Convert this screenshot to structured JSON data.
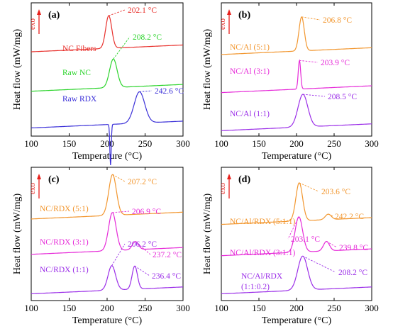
{
  "chart_data": [
    {
      "type": "line",
      "panel": "(a)",
      "exo_label": "exo",
      "xlabel": "Temperature (°C)",
      "ylabel": "Heat flow (mW/mg)",
      "xlim": [
        100,
        300
      ],
      "x_ticks": [
        "100",
        "150",
        "200",
        "250",
        "300"
      ],
      "series": [
        {
          "name": "NC Fibers",
          "color": "#e8302c",
          "offset": 6.2,
          "peak_label": "202.1 °C",
          "peaks": [
            [
              202.1,
              2.4,
              4
            ]
          ]
        },
        {
          "name": "Raw NC",
          "color": "#2cd42c",
          "offset": 3.3,
          "peak_label": "208.2 °C",
          "peaks": [
            [
              208.2,
              2.1,
              5
            ]
          ]
        },
        {
          "name": "Raw RDX",
          "color": "#3b30d8",
          "offset": 0.6,
          "peak_label": "242.6 °C",
          "peaks": [
            [
              204.5,
              -3.0,
              0.9
            ],
            [
              242.6,
              2.3,
              7
            ]
          ]
        }
      ]
    },
    {
      "type": "line",
      "panel": "(b)",
      "exo_label": "exo",
      "xlabel": "Temperature (°C)",
      "ylabel": "Heat flow (mW/mg)",
      "xlim": [
        100,
        300
      ],
      "x_ticks": [
        "100",
        "150",
        "200",
        "250",
        "300"
      ],
      "series": [
        {
          "name": "NC/Al (5:1)",
          "color": "#f2962e",
          "offset": 6.0,
          "peak_label": "206.8 °C",
          "peaks": [
            [
              206.8,
              2.5,
              3.5
            ]
          ]
        },
        {
          "name": "NC/Al (3:1)",
          "color": "#e62ad8",
          "offset": 3.2,
          "peak_label": "203.9 °C",
          "peaks": [
            [
              203.9,
              2.1,
              1.6
            ]
          ]
        },
        {
          "name": "NC/Al (1:1)",
          "color": "#9b2ee8",
          "offset": 0.4,
          "peak_label": "208.5 °C",
          "peaks": [
            [
              208.5,
              2.4,
              6.5
            ]
          ]
        }
      ]
    },
    {
      "type": "line",
      "panel": "(c)",
      "exo_label": "exo",
      "xlabel": "Temperature (°C)",
      "ylabel": "Heat flow (mW/mg)",
      "xlim": [
        100,
        300
      ],
      "x_ticks": [
        "100",
        "150",
        "200",
        "250",
        "300"
      ],
      "series": [
        {
          "name": "NC/RDX (5:1)",
          "color": "#f2962e",
          "offset": 6.0,
          "peak_label": "207.2 °C",
          "peaks": [
            [
              207.2,
              3.0,
              5
            ]
          ]
        },
        {
          "name": "NC/RDX (3:1)",
          "color": "#e62ad8",
          "offset": 3.4,
          "peak_label": "206.9 °C",
          "second_peak_label": "237.2 °C",
          "peaks": [
            [
              206.9,
              2.8,
              5
            ],
            [
              237.2,
              0.6,
              4
            ]
          ]
        },
        {
          "name": "NC/RDX (1:1)",
          "color": "#9b2ee8",
          "offset": 0.5,
          "peak_label": "206.2 °C",
          "second_peak_label": "236.4 °C",
          "peaks": [
            [
              206.2,
              1.8,
              5
            ],
            [
              236.4,
              1.7,
              3.5
            ]
          ]
        }
      ]
    },
    {
      "type": "line",
      "panel": "(d)",
      "exo_label": "exo",
      "xlabel": "Temperature (°C)",
      "ylabel": "Heat flow (mW/mg)",
      "xlim": [
        100,
        300
      ],
      "x_ticks": [
        "100",
        "150",
        "200",
        "250",
        "300"
      ],
      "series": [
        {
          "name": "NC/Al/RDX (5:1:1)",
          "color": "#f2962e",
          "offset": 5.6,
          "peak_label": "203.6 °C",
          "second_peak_label": "242.2 °C",
          "peaks": [
            [
              203.6,
              2.8,
              4.5
            ],
            [
              242.2,
              0.4,
              4
            ]
          ]
        },
        {
          "name": "NC/Al/RDX (3:1:1)",
          "color": "#e62ad8",
          "offset": 3.3,
          "peak_label": "203.1 °C",
          "second_peak_label": "239.8 °C",
          "peaks": [
            [
              203.1,
              2.6,
              5
            ],
            [
              239.8,
              0.7,
              4
            ]
          ]
        },
        {
          "name": "NC/Al/RDX",
          "name_line2": "(1:1:0.2)",
          "color": "#9b2ee8",
          "offset": 0.5,
          "peak_label": "208.2 °C",
          "peaks": [
            [
              208.2,
              2.5,
              6.5
            ]
          ]
        }
      ]
    }
  ]
}
